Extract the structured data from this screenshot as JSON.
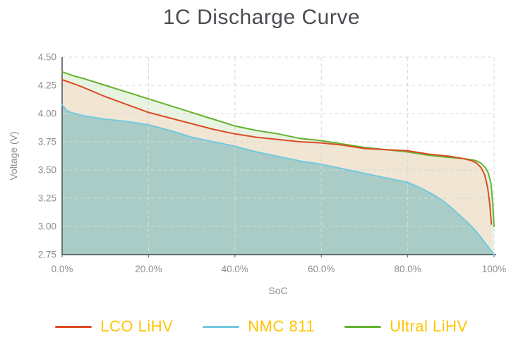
{
  "palette": {
    "title_color": "#4a4d52",
    "legend_text_color": "#ffc400",
    "axis_line_color": "#55595c",
    "grid_color": "#d8d8d8",
    "tick_text_color": "#8e8e8e"
  },
  "chart_data": {
    "type": "line-area",
    "title": "1C Discharge Curve",
    "xlabel": "SoC",
    "ylabel": "Voltage  (V)",
    "xlim": [
      0,
      100
    ],
    "ylim": [
      2.75,
      4.5
    ],
    "grid": true,
    "grid_style": "dashed",
    "legend_position": "bottom",
    "x_ticks": [
      {
        "value": 0,
        "label": "0.0%"
      },
      {
        "value": 20,
        "label": "20.0%"
      },
      {
        "value": 40,
        "label": "40.0%"
      },
      {
        "value": 60,
        "label": "60.0%"
      },
      {
        "value": 80,
        "label": "80.0%"
      },
      {
        "value": 100,
        "label": "100%"
      }
    ],
    "y_ticks": [
      {
        "value": 2.75,
        "label": "2.75"
      },
      {
        "value": 3.0,
        "label": "3.00"
      },
      {
        "value": 3.25,
        "label": "3.25"
      },
      {
        "value": 3.5,
        "label": "3.50"
      },
      {
        "value": 3.75,
        "label": "3.75"
      },
      {
        "value": 4.0,
        "label": "4.00"
      },
      {
        "value": 4.25,
        "label": "4.25"
      },
      {
        "value": 4.5,
        "label": "4.50"
      }
    ],
    "series": [
      {
        "name": "LCO LiHV",
        "color": "#dc4b27",
        "fill": "#f0e6d3",
        "points": [
          [
            0,
            4.3
          ],
          [
            3,
            4.26
          ],
          [
            5,
            4.23
          ],
          [
            10,
            4.15
          ],
          [
            15,
            4.08
          ],
          [
            20,
            4.01
          ],
          [
            25,
            3.96
          ],
          [
            30,
            3.91
          ],
          [
            35,
            3.86
          ],
          [
            40,
            3.82
          ],
          [
            45,
            3.79
          ],
          [
            50,
            3.77
          ],
          [
            55,
            3.75
          ],
          [
            60,
            3.74
          ],
          [
            65,
            3.72
          ],
          [
            70,
            3.69
          ],
          [
            75,
            3.68
          ],
          [
            80,
            3.67
          ],
          [
            85,
            3.64
          ],
          [
            90,
            3.62
          ],
          [
            93,
            3.6
          ],
          [
            95,
            3.58
          ],
          [
            96,
            3.56
          ],
          [
            97,
            3.52
          ],
          [
            97.8,
            3.46
          ],
          [
            98.5,
            3.35
          ],
          [
            99,
            3.2
          ],
          [
            99.4,
            3.02
          ]
        ]
      },
      {
        "name": "NMC 811",
        "color": "#74c8e1",
        "fill": "#a9cdc6",
        "points": [
          [
            0,
            4.08
          ],
          [
            1,
            4.03
          ],
          [
            2,
            4.01
          ],
          [
            3,
            4.0
          ],
          [
            5,
            3.98
          ],
          [
            10,
            3.95
          ],
          [
            15,
            3.93
          ],
          [
            20,
            3.9
          ],
          [
            25,
            3.85
          ],
          [
            30,
            3.79
          ],
          [
            35,
            3.75
          ],
          [
            40,
            3.71
          ],
          [
            45,
            3.66
          ],
          [
            50,
            3.62
          ],
          [
            55,
            3.58
          ],
          [
            60,
            3.55
          ],
          [
            65,
            3.51
          ],
          [
            70,
            3.47
          ],
          [
            75,
            3.43
          ],
          [
            80,
            3.39
          ],
          [
            83,
            3.34
          ],
          [
            86,
            3.28
          ],
          [
            88,
            3.23
          ],
          [
            90,
            3.17
          ],
          [
            92,
            3.1
          ],
          [
            94,
            3.03
          ],
          [
            96,
            2.95
          ],
          [
            97,
            2.9
          ],
          [
            98,
            2.85
          ],
          [
            99,
            2.8
          ],
          [
            100,
            2.75
          ]
        ]
      },
      {
        "name": "Ultral LiHV",
        "color": "#64b32f",
        "fill": "#e9f3e2",
        "points": [
          [
            0,
            4.37
          ],
          [
            3,
            4.33
          ],
          [
            5,
            4.31
          ],
          [
            10,
            4.25
          ],
          [
            15,
            4.19
          ],
          [
            20,
            4.13
          ],
          [
            25,
            4.07
          ],
          [
            30,
            4.01
          ],
          [
            35,
            3.95
          ],
          [
            40,
            3.89
          ],
          [
            45,
            3.85
          ],
          [
            50,
            3.82
          ],
          [
            55,
            3.78
          ],
          [
            60,
            3.76
          ],
          [
            65,
            3.73
          ],
          [
            70,
            3.7
          ],
          [
            75,
            3.68
          ],
          [
            80,
            3.66
          ],
          [
            85,
            3.63
          ],
          [
            90,
            3.61
          ],
          [
            93,
            3.6
          ],
          [
            95,
            3.59
          ],
          [
            96,
            3.58
          ],
          [
            97,
            3.56
          ],
          [
            98,
            3.52
          ],
          [
            98.7,
            3.47
          ],
          [
            99.3,
            3.38
          ],
          [
            99.7,
            3.2
          ],
          [
            100,
            3.0
          ]
        ]
      }
    ]
  }
}
